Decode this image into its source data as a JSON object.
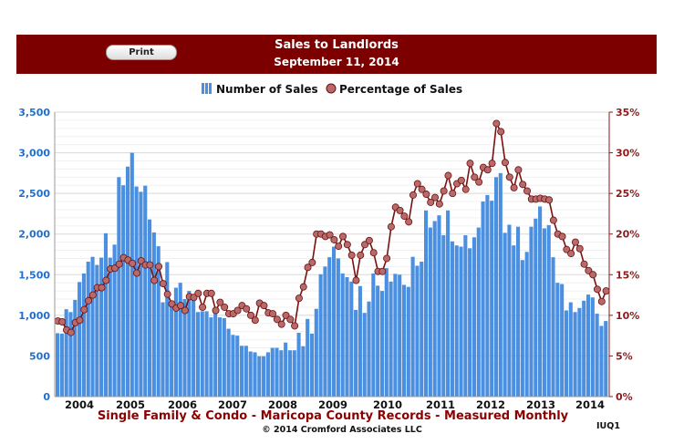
{
  "header": {
    "title": "Sales to Landlords",
    "date": "September 11, 2014",
    "print_label": "Print"
  },
  "colors": {
    "header_bg": "#7d0000",
    "bars": "#4a8fe0",
    "line": "#7a1010",
    "markers": "#b86a6a"
  },
  "chart_data": {
    "type": "bar+line",
    "title": "Sales to Landlords",
    "subtitle": "September 11, 2014",
    "legend": [
      "Number of Sales",
      "Percentage of Sales"
    ],
    "legend_position": "top",
    "grid": true,
    "x_tick_labels": [
      "2004",
      "2005",
      "2006",
      "2007",
      "2008",
      "2009",
      "2010",
      "2011",
      "2012",
      "2013",
      "2014"
    ],
    "y_left": {
      "ylim": [
        0,
        3500
      ],
      "ticks": [
        "0",
        "500",
        "1,000",
        "1,500",
        "2,000",
        "2,500",
        "3,000",
        "3,500"
      ]
    },
    "y_right": {
      "ylim": [
        0,
        35
      ],
      "ticks": [
        "0%",
        "5%",
        "10%",
        "15%",
        "20%",
        "25%",
        "30%",
        "35%"
      ]
    },
    "series": [
      {
        "name": "Number of Sales",
        "type": "bar",
        "axis": "left",
        "values": [
          780,
          775,
          1075,
          1040,
          1190,
          1410,
          1515,
          1660,
          1720,
          1620,
          1710,
          2010,
          1710,
          1870,
          2700,
          2600,
          2830,
          3000,
          2585,
          2520,
          2595,
          2180,
          2020,
          1850,
          1160,
          1655,
          1150,
          1340,
          1400,
          1200,
          1300,
          1230,
          1040,
          1050,
          1050,
          975,
          1030,
          975,
          965,
          835,
          760,
          750,
          625,
          625,
          555,
          545,
          495,
          495,
          545,
          600,
          600,
          570,
          665,
          570,
          570,
          785,
          620,
          955,
          775,
          1080,
          1505,
          1600,
          1715,
          1845,
          1700,
          1515,
          1470,
          1415,
          1067,
          1360,
          1030,
          1170,
          1515,
          1365,
          1300,
          1580,
          1415,
          1510,
          1500,
          1375,
          1350,
          1720,
          1610,
          1660,
          2290,
          2080,
          2160,
          2230,
          1985,
          2290,
          1910,
          1860,
          1845,
          1985,
          1825,
          1960,
          2080,
          2400,
          2480,
          2410,
          2700,
          2750,
          2015,
          2115,
          1860,
          2090,
          1680,
          1780,
          2090,
          2190,
          2340,
          2070,
          2110,
          1715,
          1400,
          1385,
          1060,
          1160,
          1040,
          1090,
          1180,
          1255,
          1220,
          1020,
          870,
          930
        ]
      },
      {
        "name": "Percentage of Sales",
        "type": "line",
        "axis": "right",
        "values": [
          9.3,
          9.2,
          8.2,
          7.9,
          9.1,
          9.4,
          10.7,
          11.8,
          12.5,
          13.4,
          13.4,
          14.3,
          15.7,
          15.8,
          16.3,
          17.1,
          16.8,
          16.4,
          15.2,
          16.7,
          16.2,
          16.2,
          14.3,
          16.0,
          13.9,
          12.6,
          11.4,
          10.9,
          11.2,
          10.6,
          12.3,
          12.2,
          12.7,
          11.0,
          12.7,
          12.7,
          10.6,
          11.6,
          11.0,
          10.2,
          10.2,
          10.6,
          11.2,
          10.8,
          10.0,
          9.4,
          11.5,
          11.2,
          10.3,
          10.2,
          9.5,
          8.9,
          10.0,
          9.5,
          8.7,
          12.1,
          13.5,
          15.9,
          16.5,
          20.0,
          20.0,
          19.7,
          19.9,
          19.3,
          18.5,
          19.7,
          18.7,
          17.4,
          14.3,
          17.4,
          18.7,
          19.2,
          17.7,
          15.4,
          15.4,
          17.0,
          20.9,
          23.3,
          22.9,
          22.2,
          21.5,
          24.8,
          26.2,
          25.5,
          24.9,
          23.9,
          24.5,
          23.7,
          25.3,
          27.2,
          25.0,
          26.2,
          26.6,
          25.5,
          28.7,
          27.0,
          26.4,
          28.2,
          27.9,
          28.7,
          33.6,
          32.6,
          28.8,
          27.0,
          25.7,
          27.9,
          26.1,
          25.3,
          24.3,
          24.3,
          24.4,
          24.3,
          24.2,
          21.7,
          20.0,
          19.7,
          18.1,
          17.6,
          19.0,
          18.2,
          16.3,
          15.5,
          15.0,
          13.2,
          11.7,
          13.0
        ]
      }
    ],
    "footer_title": "Single Family & Condo - Maricopa County Records - Measured Monthly",
    "copyright": "© 2014 Cromford Associates LLC",
    "code": "IUQ1"
  }
}
